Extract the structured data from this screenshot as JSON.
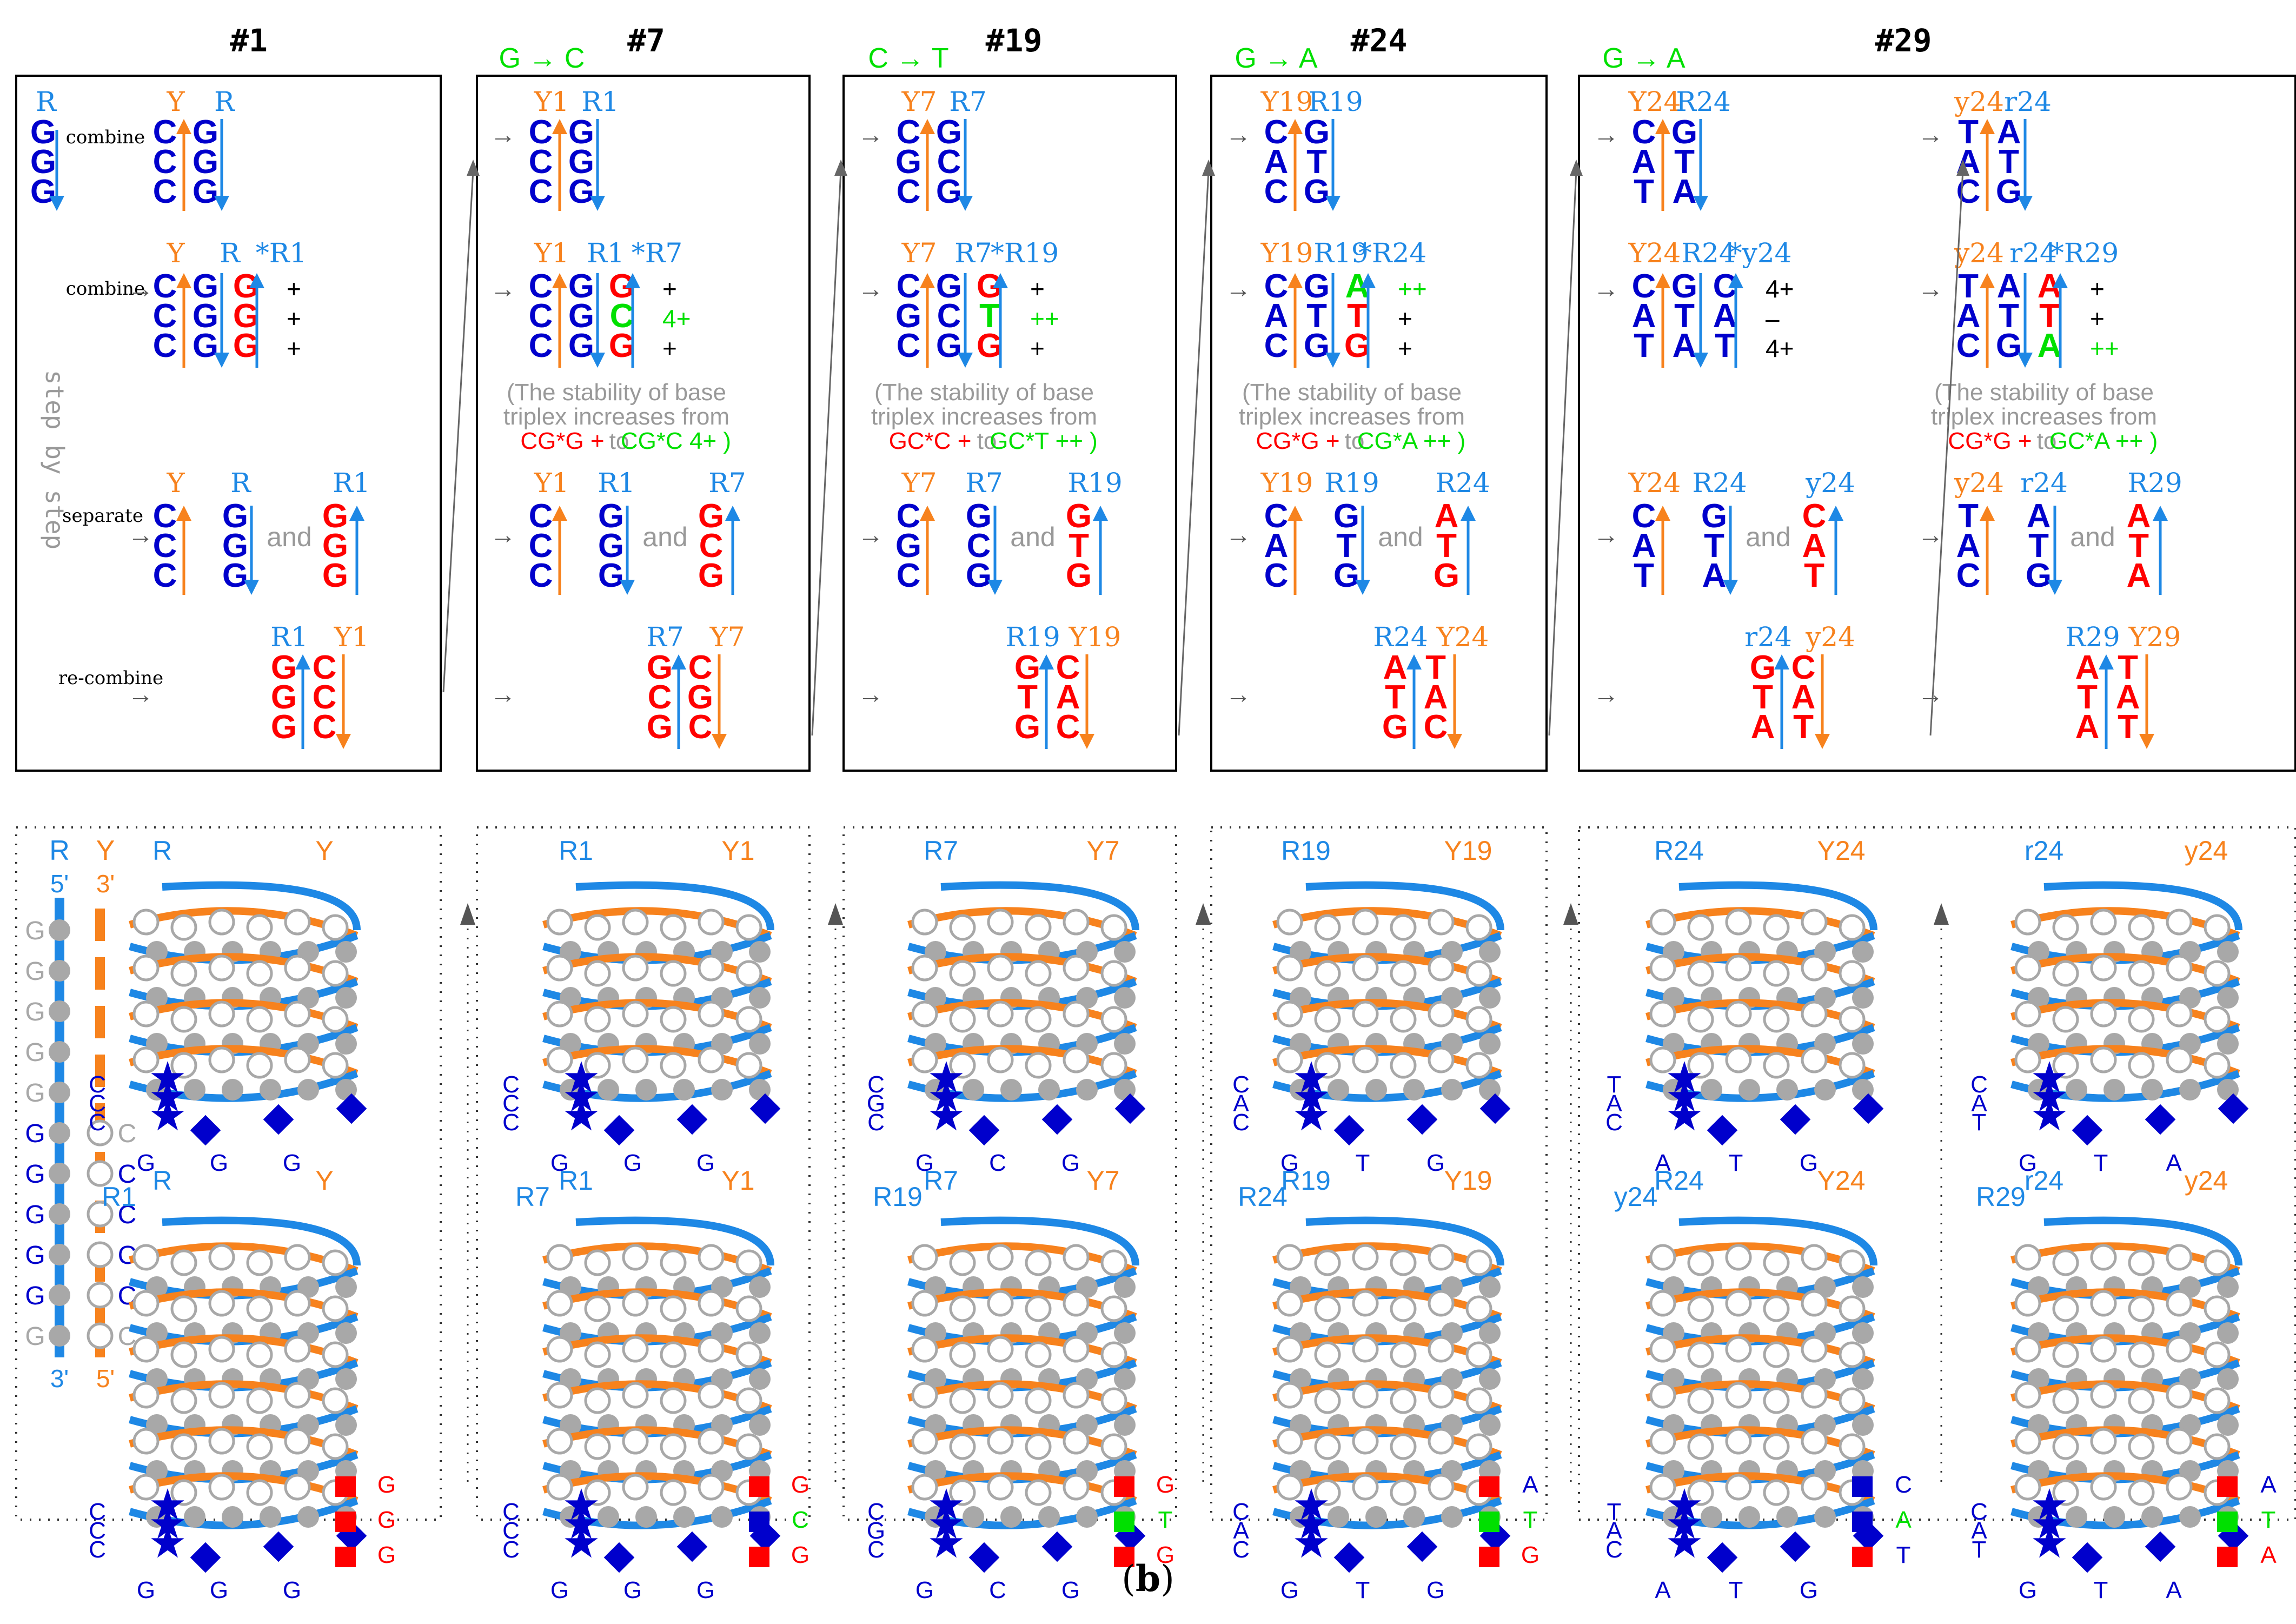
{
  "figure": {
    "caption_label": "b",
    "colors": {
      "blue_strand": "#1e88e5",
      "orange_strand": "#f7821d",
      "base_blue": "#0000cc",
      "base_red": "#ff0000",
      "base_green": "#00e000",
      "note_gray": "#999999",
      "bead_gray": "#a8a8a8",
      "frame": "#000000"
    },
    "labels": {
      "combine": "combine",
      "separate": "separate",
      "recombine": "re-combine",
      "and": "and",
      "step_by_step": "step by step",
      "arrow": "→",
      "note_line1": "(The stability of base",
      "note_line2": "triplex increases from",
      "note_to": "to",
      "five_prime": "5'",
      "three_prime": "3'"
    },
    "panels": [
      {
        "id": "#1",
        "mutation": "",
        "purine": "R",
        "pyrimidine": "Y",
        "third": "R1",
        "pair_top": [
          [
            "C",
            "G"
          ],
          [
            "C",
            "G"
          ],
          [
            "C",
            "G"
          ]
        ],
        "triplex": [
          [
            "C",
            "G",
            "G",
            "+"
          ],
          [
            "C",
            "G",
            "G",
            "+"
          ],
          [
            "C",
            "G",
            "G",
            "+"
          ]
        ],
        "sep_pyr": [
          "C",
          "C",
          "C"
        ],
        "sep_pur": [
          "G",
          "G",
          "G"
        ],
        "sep_third": [
          "G",
          "G",
          "G"
        ],
        "recomb_left": "R1",
        "recomb_right": "Y1",
        "recomb": [
          [
            "G",
            "C"
          ],
          [
            "G",
            "C"
          ],
          [
            "G",
            "C"
          ]
        ],
        "note_from": "",
        "note_to": "",
        "helix_bottom_bases": [
          "G",
          "G",
          "G"
        ],
        "helix_side_bases": [
          "G",
          "G",
          "G"
        ],
        "helix_star_bases": [
          "C",
          "C",
          "C"
        ]
      },
      {
        "id": "#7",
        "mutation": "G → C",
        "purine": "R1",
        "pyrimidine": "Y1",
        "third": "R7",
        "pair_top": [
          [
            "C",
            "G"
          ],
          [
            "C",
            "G"
          ],
          [
            "C",
            "G"
          ]
        ],
        "triplex": [
          [
            "C",
            "G",
            "G",
            "+"
          ],
          [
            "C",
            "G",
            "C",
            "4+"
          ],
          [
            "C",
            "G",
            "G",
            "+"
          ]
        ],
        "sep_pyr": [
          "C",
          "C",
          "C"
        ],
        "sep_pur": [
          "G",
          "G",
          "G"
        ],
        "sep_third": [
          "G",
          "C",
          "G"
        ],
        "recomb_left": "R7",
        "recomb_right": "Y7",
        "recomb": [
          [
            "G",
            "C"
          ],
          [
            "C",
            "G"
          ],
          [
            "G",
            "C"
          ]
        ],
        "note_from": "CG*G +",
        "note_to": "CG*C 4+ )",
        "helix_bottom_bases": [
          "G",
          "G",
          "G"
        ],
        "helix_side_bases": [
          "G",
          "C",
          "G"
        ],
        "helix_star_bases": [
          "C",
          "C",
          "C"
        ]
      },
      {
        "id": "#19",
        "mutation": "C → T",
        "purine": "R7",
        "pyrimidine": "Y7",
        "third": "R19",
        "pair_top": [
          [
            "C",
            "G"
          ],
          [
            "G",
            "C"
          ],
          [
            "C",
            "G"
          ]
        ],
        "triplex": [
          [
            "C",
            "G",
            "G",
            "+"
          ],
          [
            "G",
            "C",
            "T",
            "++"
          ],
          [
            "C",
            "G",
            "G",
            "+"
          ]
        ],
        "sep_pyr": [
          "C",
          "G",
          "C"
        ],
        "sep_pur": [
          "G",
          "C",
          "G"
        ],
        "sep_third": [
          "G",
          "T",
          "G"
        ],
        "recomb_left": "R19",
        "recomb_right": "Y19",
        "recomb": [
          [
            "G",
            "C"
          ],
          [
            "T",
            "A"
          ],
          [
            "G",
            "C"
          ]
        ],
        "note_from": "GC*C +",
        "note_to": "GC*T ++ )",
        "helix_bottom_bases": [
          "G",
          "C",
          "G"
        ],
        "helix_side_bases": [
          "G",
          "T",
          "G"
        ],
        "helix_star_bases": [
          "C",
          "G",
          "C"
        ]
      },
      {
        "id": "#24",
        "mutation": "G → A",
        "purine": "R19",
        "pyrimidine": "Y19",
        "third": "R24",
        "pair_top": [
          [
            "C",
            "G"
          ],
          [
            "A",
            "T"
          ],
          [
            "C",
            "G"
          ]
        ],
        "triplex": [
          [
            "C",
            "G",
            "A",
            "++"
          ],
          [
            "A",
            "T",
            "T",
            "+"
          ],
          [
            "C",
            "G",
            "G",
            "+"
          ]
        ],
        "sep_pyr": [
          "C",
          "A",
          "C"
        ],
        "sep_pur": [
          "G",
          "T",
          "G"
        ],
        "sep_third": [
          "A",
          "T",
          "G"
        ],
        "recomb_left": "R24",
        "recomb_right": "Y24",
        "recomb": [
          [
            "A",
            "T"
          ],
          [
            "T",
            "A"
          ],
          [
            "G",
            "C"
          ]
        ],
        "note_from": "CG*G +",
        "note_to": "CG*A ++ )",
        "helix_bottom_bases": [
          "G",
          "T",
          "G"
        ],
        "helix_side_bases": [
          "A",
          "T",
          "G"
        ],
        "helix_star_bases": [
          "C",
          "A",
          "C"
        ]
      },
      {
        "id": "#29",
        "mutation": "G → A",
        "purine": "R24",
        "pyrimidine": "Y24",
        "third": "y24",
        "pair_top": [
          [
            "C",
            "G"
          ],
          [
            "A",
            "T"
          ],
          [
            "T",
            "A"
          ]
        ],
        "triplex": [
          [
            "C",
            "G",
            "C",
            "4+"
          ],
          [
            "A",
            "T",
            "A",
            "–"
          ],
          [
            "T",
            "A",
            "T",
            "4+"
          ]
        ],
        "sep_pyr": [
          "C",
          "A",
          "T"
        ],
        "sep_pur": [
          "G",
          "T",
          "A"
        ],
        "sep_third": [
          "C",
          "A",
          "T"
        ],
        "recomb_left": "r24",
        "recomb_right": "y24",
        "recomb": [
          [
            "G",
            "C"
          ],
          [
            "T",
            "A"
          ],
          [
            "A",
            "T"
          ]
        ],
        "note_from": "",
        "note_to": "",
        "helix_bottom_bases": [
          "A",
          "T",
          "G"
        ],
        "helix_side_bases": [
          "C",
          "A",
          "T"
        ],
        "helix_star_bases": [
          "T",
          "A",
          "C"
        ]
      },
      {
        "id": "",
        "mutation": "",
        "purine": "r24",
        "pyrimidine": "y24",
        "third": "R29",
        "pair_top": [
          [
            "T",
            "A"
          ],
          [
            "A",
            "T"
          ],
          [
            "C",
            "G"
          ]
        ],
        "triplex": [
          [
            "T",
            "A",
            "A",
            "+"
          ],
          [
            "A",
            "T",
            "T",
            "+"
          ],
          [
            "C",
            "G",
            "A",
            "++"
          ]
        ],
        "sep_pyr": [
          "T",
          "A",
          "C"
        ],
        "sep_pur": [
          "A",
          "T",
          "G"
        ],
        "sep_third": [
          "A",
          "T",
          "A"
        ],
        "recomb_left": "R29",
        "recomb_right": "Y29",
        "recomb": [
          [
            "A",
            "T"
          ],
          [
            "T",
            "A"
          ],
          [
            "A",
            "T"
          ]
        ],
        "note_from": "CG*G +",
        "note_to": "GC*A ++ )",
        "helix_bottom_bases": [
          "G",
          "T",
          "A"
        ],
        "helix_side_bases": [
          "A",
          "T",
          "A"
        ],
        "helix_star_bases": [
          "C",
          "A",
          "T"
        ]
      }
    ],
    "strand_column": {
      "purine_label": "R",
      "pyrimidine_label": "Y",
      "purine_bases": [
        "G",
        "G",
        "G",
        "G",
        "G",
        "G",
        "G",
        "G",
        "G",
        "G",
        "G"
      ],
      "pyrimidine_bases": [
        "C",
        "C",
        "C",
        "C",
        "C",
        "C"
      ]
    }
  }
}
